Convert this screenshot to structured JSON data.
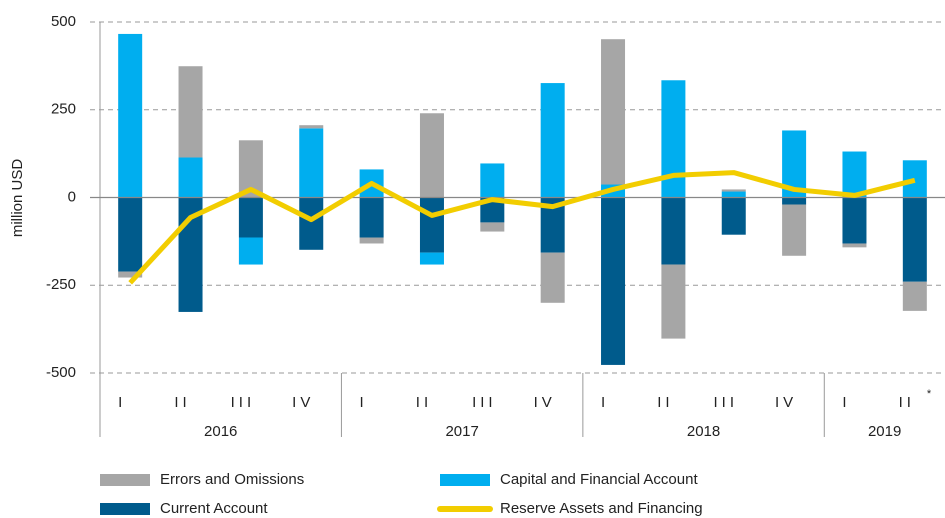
{
  "chart_data": {
    "type": "bar",
    "y_label": "million USD",
    "categories": [
      "I",
      "II",
      "III",
      "IV",
      "I",
      "II",
      "III",
      "IV",
      "I",
      "II",
      "III",
      "IV",
      "I",
      "II"
    ],
    "year_groups": [
      {
        "label": "2016",
        "span": 4
      },
      {
        "label": "2017",
        "span": 4
      },
      {
        "label": "2018",
        "span": 4
      },
      {
        "label": "2019",
        "span": 2
      }
    ],
    "annotation": "*",
    "series": [
      {
        "name": "Errors and Omissions",
        "color": "#a6a6a6",
        "values": [
          -17,
          260,
          163,
          9,
          -17,
          240,
          -26,
          -143,
          414,
          -211,
          6,
          -146,
          -11,
          -83
        ]
      },
      {
        "name": "Capital and Financial Account",
        "color": "#00aeef",
        "values": [
          466,
          114,
          -77,
          197,
          80,
          -34,
          97,
          326,
          37,
          334,
          17,
          191,
          131,
          106
        ]
      },
      {
        "name": "Current Account",
        "color": "#005b8c",
        "values": [
          -211,
          -326,
          -114,
          -149,
          -114,
          -157,
          -71,
          -157,
          -477,
          -191,
          -106,
          -20,
          -131,
          -240
        ]
      },
      {
        "name": "Reserve Assets and Financing",
        "color": "#f2cd00",
        "type": "line",
        "values": [
          -243,
          -57,
          23,
          -63,
          40,
          -51,
          -6,
          -26,
          23,
          63,
          71,
          23,
          6,
          49
        ]
      }
    ],
    "ylim": [
      -500,
      500
    ],
    "yticks": [
      -500,
      -250,
      0,
      250,
      500
    ],
    "grid": true
  }
}
